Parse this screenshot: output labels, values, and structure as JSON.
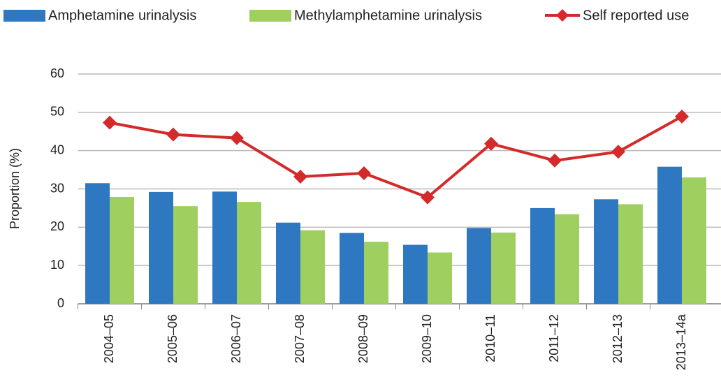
{
  "chart_data": {
    "type": "bar_line",
    "y_label": "Proportion (%)",
    "categories": [
      "2004–05",
      "2005–06",
      "2006–07",
      "2007–08",
      "2008–09",
      "2009–10",
      "2010–11",
      "2011–12",
      "2012–13",
      "2013–14a"
    ],
    "series": [
      {
        "name": "Amphetamine urinalysis",
        "color": "#2e78c2",
        "type": "bar",
        "values": [
          31.5,
          29.2,
          29.3,
          21.2,
          18.5,
          15.4,
          19.8,
          25.0,
          27.3,
          35.8
        ]
      },
      {
        "name": "Methylamphetamine urinalysis",
        "color": "#9fcf5f",
        "type": "bar",
        "values": [
          27.9,
          25.5,
          26.6,
          19.2,
          16.2,
          13.4,
          18.6,
          23.4,
          26.0,
          33.0
        ]
      },
      {
        "name": "Self reported use",
        "color": "#d42a2a",
        "type": "line",
        "values": [
          47.3,
          44.2,
          43.3,
          33.2,
          34.1,
          27.8,
          41.8,
          37.4,
          39.7,
          48.9
        ]
      }
    ],
    "ylim": [
      0,
      60
    ],
    "yticks": [
      0,
      10,
      20,
      30,
      40,
      50,
      60
    ],
    "grid": true
  }
}
